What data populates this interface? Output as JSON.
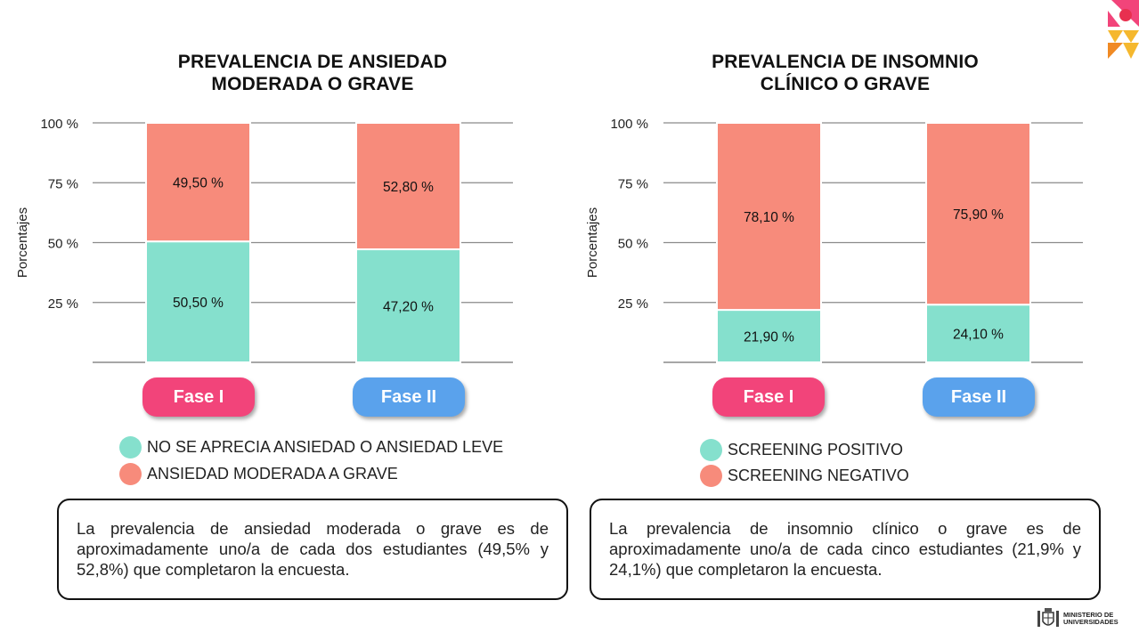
{
  "colors": {
    "teal": "#85e0cd",
    "salmon": "#f78b7b",
    "fase1": "#f2447a",
    "fase2": "#5aa2ec"
  },
  "chart_data": [
    {
      "type": "bar",
      "stacked": true,
      "title": [
        "PREVALENCIA DE ANSIEDAD",
        "MODERADA O GRAVE"
      ],
      "ylabel": "Porcentajes",
      "ylim": [
        0,
        100
      ],
      "yticks": [
        25,
        50,
        75,
        100
      ],
      "ytick_labels": [
        "25 %",
        "50 %",
        "75 %",
        "100 %"
      ],
      "grid": true,
      "categories": [
        "Fase I",
        "Fase II"
      ],
      "series": [
        {
          "name": "NO SE APRECIA ANSIEDAD O ANSIEDAD LEVE",
          "values": [
            50.5,
            47.2
          ],
          "labels": [
            "50,50 %",
            "47,20 %"
          ],
          "color": "#85e0cd"
        },
        {
          "name": "ANSIEDAD MODERADA A GRAVE",
          "values": [
            49.5,
            52.8
          ],
          "labels": [
            "49,50 %",
            "52,80 %"
          ],
          "color": "#f78b7b"
        }
      ],
      "note": "La prevalencia de ansiedad moderada o grave es de aproximadamente uno/a de cada dos estudiantes (49,5% y 52,8%) que completaron la encuesta."
    },
    {
      "type": "bar",
      "stacked": true,
      "title": [
        "PREVALENCIA DE INSOMNIO",
        "CLÍNICO O GRAVE"
      ],
      "ylabel": "Porcentajes",
      "ylim": [
        0,
        100
      ],
      "yticks": [
        25,
        50,
        75,
        100
      ],
      "ytick_labels": [
        "25 %",
        "50 %",
        "75 %",
        "100 %"
      ],
      "grid": true,
      "categories": [
        "Fase I",
        "Fase II"
      ],
      "series": [
        {
          "name": "SCREENING POSITIVO",
          "values": [
            21.9,
            24.1
          ],
          "labels": [
            "21,90 %",
            "24,10 %"
          ],
          "color": "#85e0cd"
        },
        {
          "name": "SCREENING NEGATIVO",
          "values": [
            78.1,
            75.9
          ],
          "labels": [
            "78,10 %",
            "75,90 %"
          ],
          "color": "#f78b7b"
        }
      ],
      "note": "La prevalencia de insomnio clínico o grave es de aproximadamente uno/a de cada cinco estudiantes (21,9% y 24,1%) que completaron la encuesta."
    }
  ],
  "footer": {
    "ministry": [
      "MINISTERIO DE",
      "UNIVERSIDADES"
    ]
  },
  "icons": {
    "brand": "brand-logo-icon",
    "crest": "coat-of-arms-icon"
  }
}
